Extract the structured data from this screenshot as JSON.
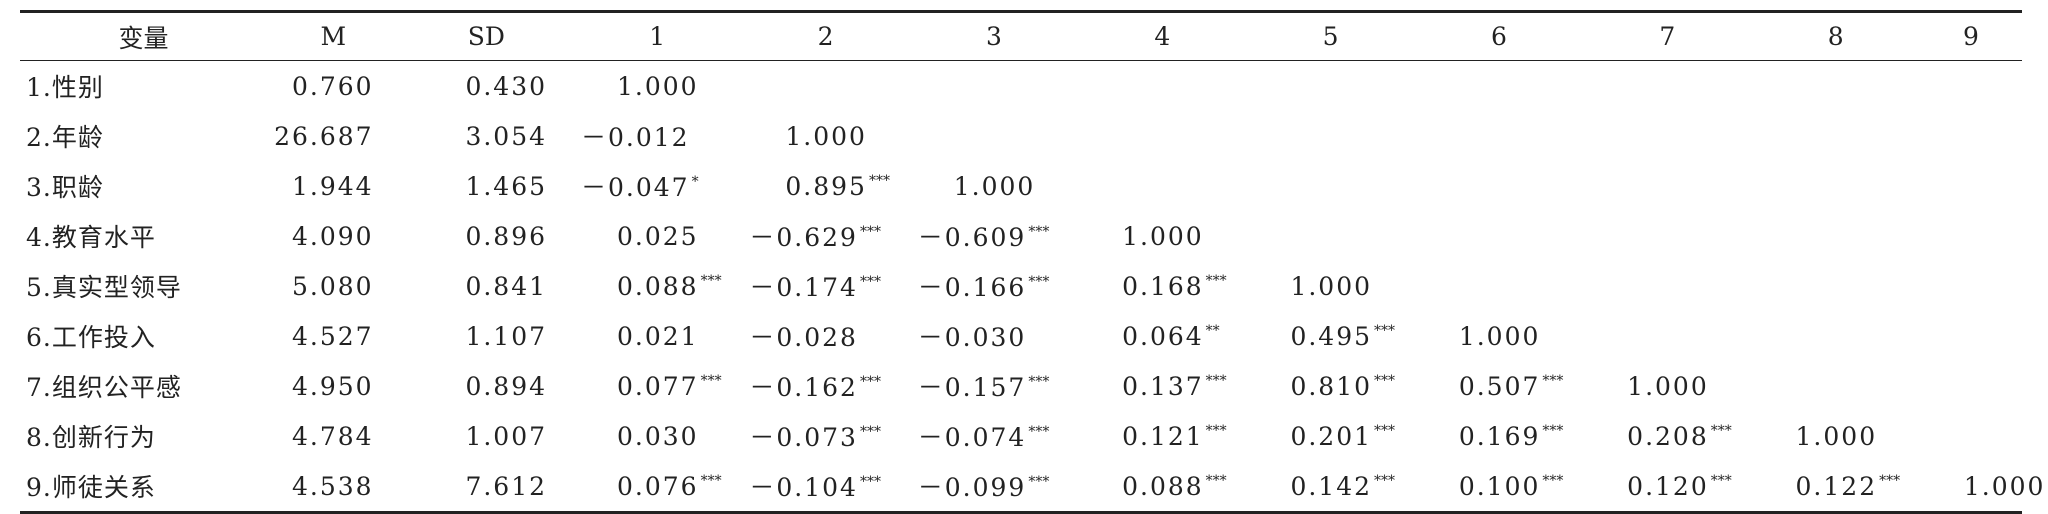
{
  "header": [
    "变量",
    "M",
    "SD",
    "1",
    "2",
    "3",
    "4",
    "5",
    "6",
    "7",
    "8",
    "9"
  ],
  "rows": [
    {
      "label": "1.性别",
      "M": "0.760",
      "SD": "0.430",
      "r": [
        {
          "value": "1.000"
        }
      ]
    },
    {
      "label": "2.年龄",
      "M": "26.687",
      "SD": "3.054",
      "r": [
        {
          "value": "－0.012"
        },
        {
          "value": "1.000"
        }
      ]
    },
    {
      "label": "3.职龄",
      "M": "1.944",
      "SD": "1.465",
      "r": [
        {
          "value": "－0.047",
          "sig": "*"
        },
        {
          "value": "0.895",
          "sig": "***"
        },
        {
          "value": "1.000"
        }
      ]
    },
    {
      "label": "4.教育水平",
      "M": "4.090",
      "SD": "0.896",
      "r": [
        {
          "value": "0.025"
        },
        {
          "value": "－0.629",
          "sig": "***"
        },
        {
          "value": "－0.609",
          "sig": "***"
        },
        {
          "value": "1.000"
        }
      ]
    },
    {
      "label": "5.真实型领导",
      "M": "5.080",
      "SD": "0.841",
      "r": [
        {
          "value": "0.088",
          "sig": "***"
        },
        {
          "value": "－0.174",
          "sig": "***"
        },
        {
          "value": "－0.166",
          "sig": "***"
        },
        {
          "value": "0.168",
          "sig": "***"
        },
        {
          "value": "1.000"
        }
      ]
    },
    {
      "label": "6.工作投入",
      "M": "4.527",
      "SD": "1.107",
      "r": [
        {
          "value": "0.021"
        },
        {
          "value": "－0.028"
        },
        {
          "value": "－0.030"
        },
        {
          "value": "0.064",
          "sig": "**"
        },
        {
          "value": "0.495",
          "sig": "***"
        },
        {
          "value": "1.000"
        }
      ]
    },
    {
      "label": "7.组织公平感",
      "M": "4.950",
      "SD": "0.894",
      "r": [
        {
          "value": "0.077",
          "sig": "***"
        },
        {
          "value": "－0.162",
          "sig": "***"
        },
        {
          "value": "－0.157",
          "sig": "***"
        },
        {
          "value": "0.137",
          "sig": "***"
        },
        {
          "value": "0.810",
          "sig": "***"
        },
        {
          "value": "0.507",
          "sig": "***"
        },
        {
          "value": "1.000"
        }
      ]
    },
    {
      "label": "8.创新行为",
      "M": "4.784",
      "SD": "1.007",
      "r": [
        {
          "value": "0.030"
        },
        {
          "value": "－0.073",
          "sig": "***"
        },
        {
          "value": "－0.074",
          "sig": "***"
        },
        {
          "value": "0.121",
          "sig": "***"
        },
        {
          "value": "0.201",
          "sig": "***"
        },
        {
          "value": "0.169",
          "sig": "***"
        },
        {
          "value": "0.208",
          "sig": "***"
        },
        {
          "value": "1.000"
        }
      ]
    },
    {
      "label": "9.师徒关系",
      "M": "4.538",
      "SD": "7.612",
      "r": [
        {
          "value": "0.076",
          "sig": "***"
        },
        {
          "value": "－0.104",
          "sig": "***"
        },
        {
          "value": "－0.099",
          "sig": "***"
        },
        {
          "value": "0.088",
          "sig": "***"
        },
        {
          "value": "0.142",
          "sig": "***"
        },
        {
          "value": "0.100",
          "sig": "***"
        },
        {
          "value": "0.120",
          "sig": "***"
        },
        {
          "value": "0.122",
          "sig": "***"
        },
        {
          "value": "1.000"
        }
      ]
    }
  ]
}
